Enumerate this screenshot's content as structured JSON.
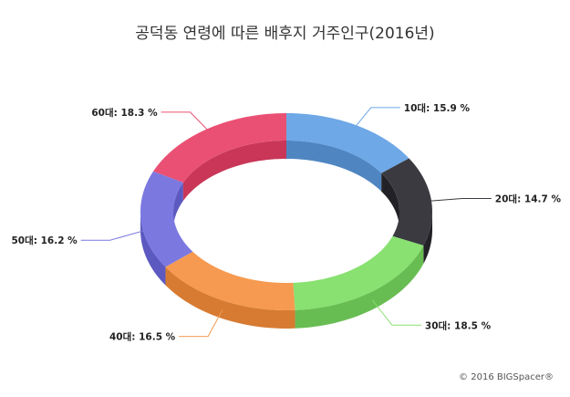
{
  "chart_data": {
    "type": "pie",
    "title": "공덕동 연령에 따른 배후지 거주인구(2016년)",
    "unit": "%",
    "categories": [
      "10대",
      "20대",
      "30대",
      "40대",
      "50대",
      "60대"
    ],
    "values": [
      15.9,
      14.7,
      18.5,
      16.5,
      16.2,
      18.3
    ],
    "colors": [
      "#6ea8e6",
      "#3a3a40",
      "#88e170",
      "#f59a50",
      "#7b78e0",
      "#ea5074"
    ],
    "side_colors": [
      "#4f86c2",
      "#222226",
      "#68bd52",
      "#d77b32",
      "#5c59c0",
      "#c93658"
    ],
    "legend": "none",
    "style": "3d-donut"
  },
  "credit": "© 2016 BIGSpacer®"
}
